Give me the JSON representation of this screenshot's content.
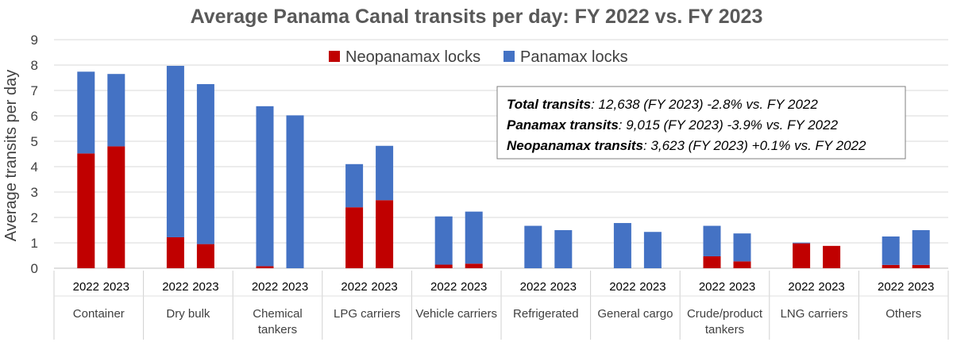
{
  "chart_data": {
    "type": "bar",
    "stacked": true,
    "title": "Average Panama Canal transits per day: FY 2022 vs. FY 2023",
    "ylabel": "Average transits per day",
    "ylim": [
      0,
      9
    ],
    "yticks": [
      0,
      1,
      2,
      3,
      4,
      5,
      6,
      7,
      8,
      9
    ],
    "years": [
      "2022",
      "2023"
    ],
    "categories": [
      {
        "name": "Container",
        "lines": [
          "Container"
        ]
      },
      {
        "name": "Dry bulk",
        "lines": [
          "Dry bulk"
        ]
      },
      {
        "name": "Chemical tankers",
        "lines": [
          "Chemical",
          "tankers"
        ]
      },
      {
        "name": "LPG carriers",
        "lines": [
          "LPG carriers"
        ]
      },
      {
        "name": "Vehicle carriers",
        "lines": [
          "Vehicle carriers"
        ]
      },
      {
        "name": "Refrigerated",
        "lines": [
          "Refrigerated"
        ]
      },
      {
        "name": "General cargo",
        "lines": [
          "General cargo"
        ]
      },
      {
        "name": "Crude/product tankers",
        "lines": [
          "Crude/product",
          "tankers"
        ]
      },
      {
        "name": "LNG carriers",
        "lines": [
          "LNG carriers"
        ]
      },
      {
        "name": "Others",
        "lines": [
          "Others"
        ]
      }
    ],
    "series": [
      {
        "name": "Neopanamax locks",
        "color": "#C00000",
        "values": [
          [
            4.52,
            4.8
          ],
          [
            1.22,
            0.95
          ],
          [
            0.08,
            0.0
          ],
          [
            2.4,
            2.68
          ],
          [
            0.14,
            0.18
          ],
          [
            0.0,
            0.0
          ],
          [
            0.0,
            0.0
          ],
          [
            0.47,
            0.27
          ],
          [
            0.98,
            0.88
          ],
          [
            0.13,
            0.13
          ]
        ]
      },
      {
        "name": "Panamax locks",
        "color": "#4472C4",
        "values": [
          [
            3.22,
            2.85
          ],
          [
            6.75,
            6.3
          ],
          [
            6.3,
            6.02
          ],
          [
            1.7,
            2.14
          ],
          [
            1.9,
            2.05
          ],
          [
            1.67,
            1.5
          ],
          [
            1.78,
            1.43
          ],
          [
            1.2,
            1.1
          ],
          [
            0.03,
            0.0
          ],
          [
            1.12,
            1.37
          ]
        ]
      }
    ],
    "annotation": [
      {
        "label": "Total transits",
        "text": ": 12,638 (FY 2023) -2.8% vs. FY 2022"
      },
      {
        "label": "Panamax transits",
        "text": ": 9,015 (FY 2023) -3.9% vs. FY 2022"
      },
      {
        "label": "Neopanamax transits",
        "text": ": 3,623 (FY 2023) +0.1% vs. FY 2022"
      }
    ],
    "legend_position": "top-center"
  }
}
